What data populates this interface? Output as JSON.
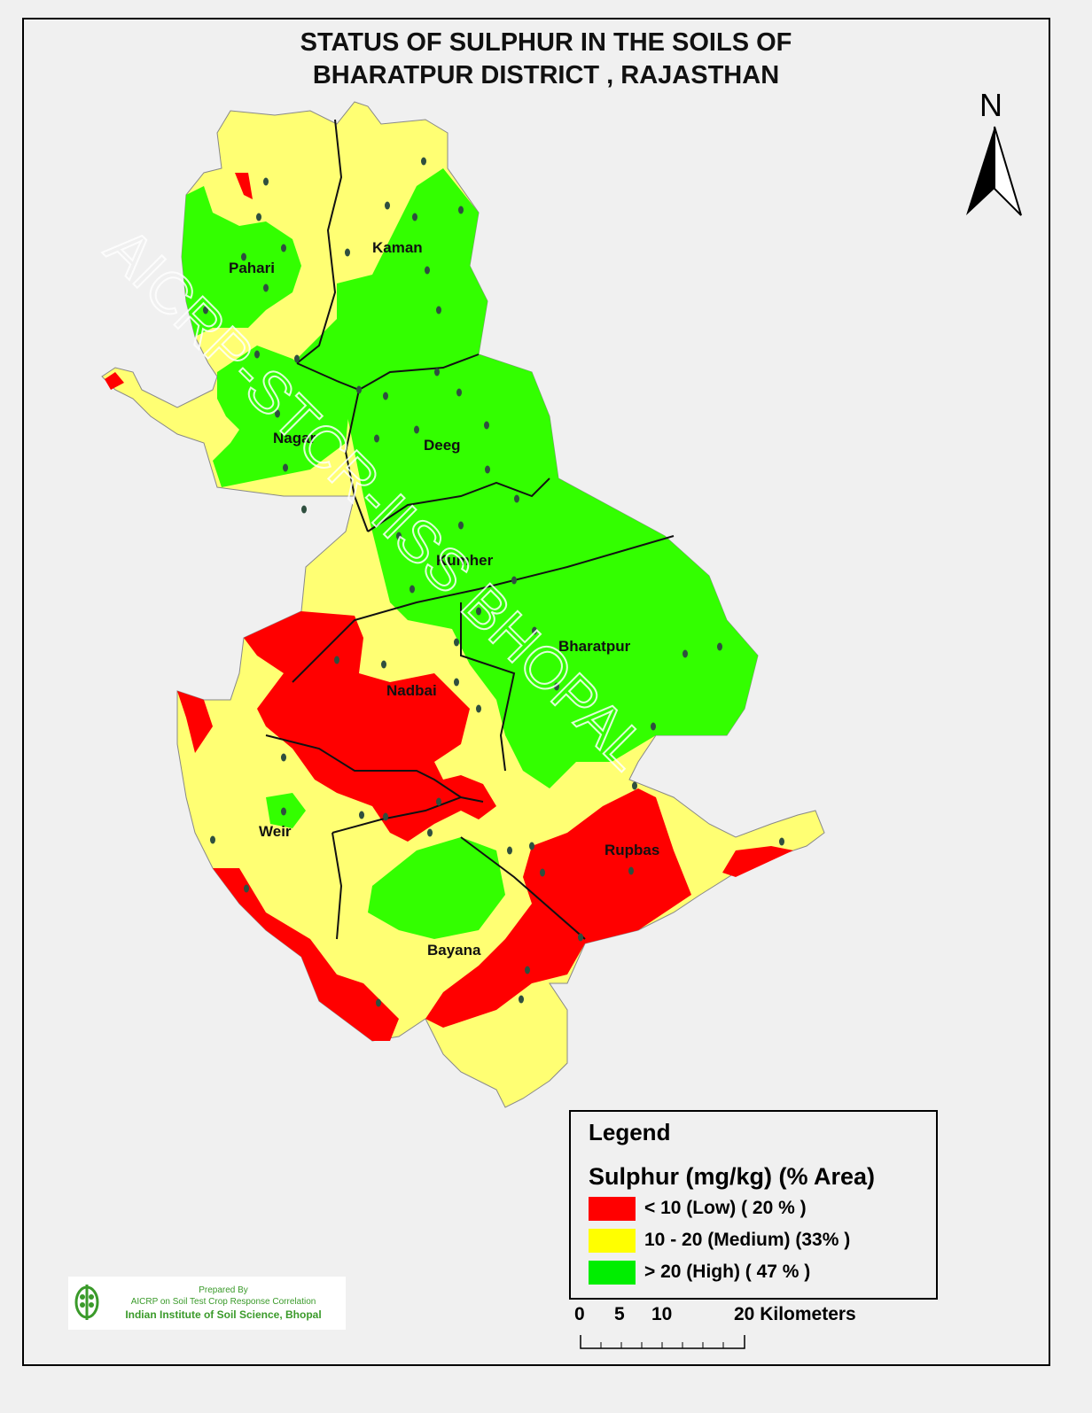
{
  "title": {
    "line1": "STATUS OF SULPHUR  IN THE SOILS OF",
    "line2": "BHARATPUR    DISTRICT , RAJASTHAN"
  },
  "north_arrow": {
    "label": "N"
  },
  "blocks": [
    "Pahari",
    "Kaman",
    "Nagar",
    "Deeg",
    "Kumher",
    "Bharatpur",
    "Nadbai",
    "Weir",
    "Rupbas",
    "Bayana"
  ],
  "watermark": "AICRP-STCR-IISS BHOPAL",
  "legend": {
    "heading": "Legend",
    "subtitle": "Sulphur (mg/kg) (% Area)",
    "items": [
      {
        "label": "< 10 (Low) ( 20 % )",
        "color": "#ff0000"
      },
      {
        "label": "10 - 20 (Medium) (33% )",
        "color": "#ffff73"
      },
      {
        "label": "> 20  (High) ( 47 % )",
        "color": "#33ff00"
      }
    ]
  },
  "scale_bar": {
    "ticks": [
      "0",
      "5",
      "10",
      "20 Kilometers"
    ]
  },
  "credit": {
    "line1": "Prepared By",
    "line2": "AICRP on Soil Test Crop Response Correlation",
    "line3": "Indian Institute of Soil Science, Bhopal"
  },
  "colors": {
    "low": "#ff0000",
    "medium": "#ffff73",
    "high": "#33ff00",
    "sample_point": "#2f4f3f"
  }
}
